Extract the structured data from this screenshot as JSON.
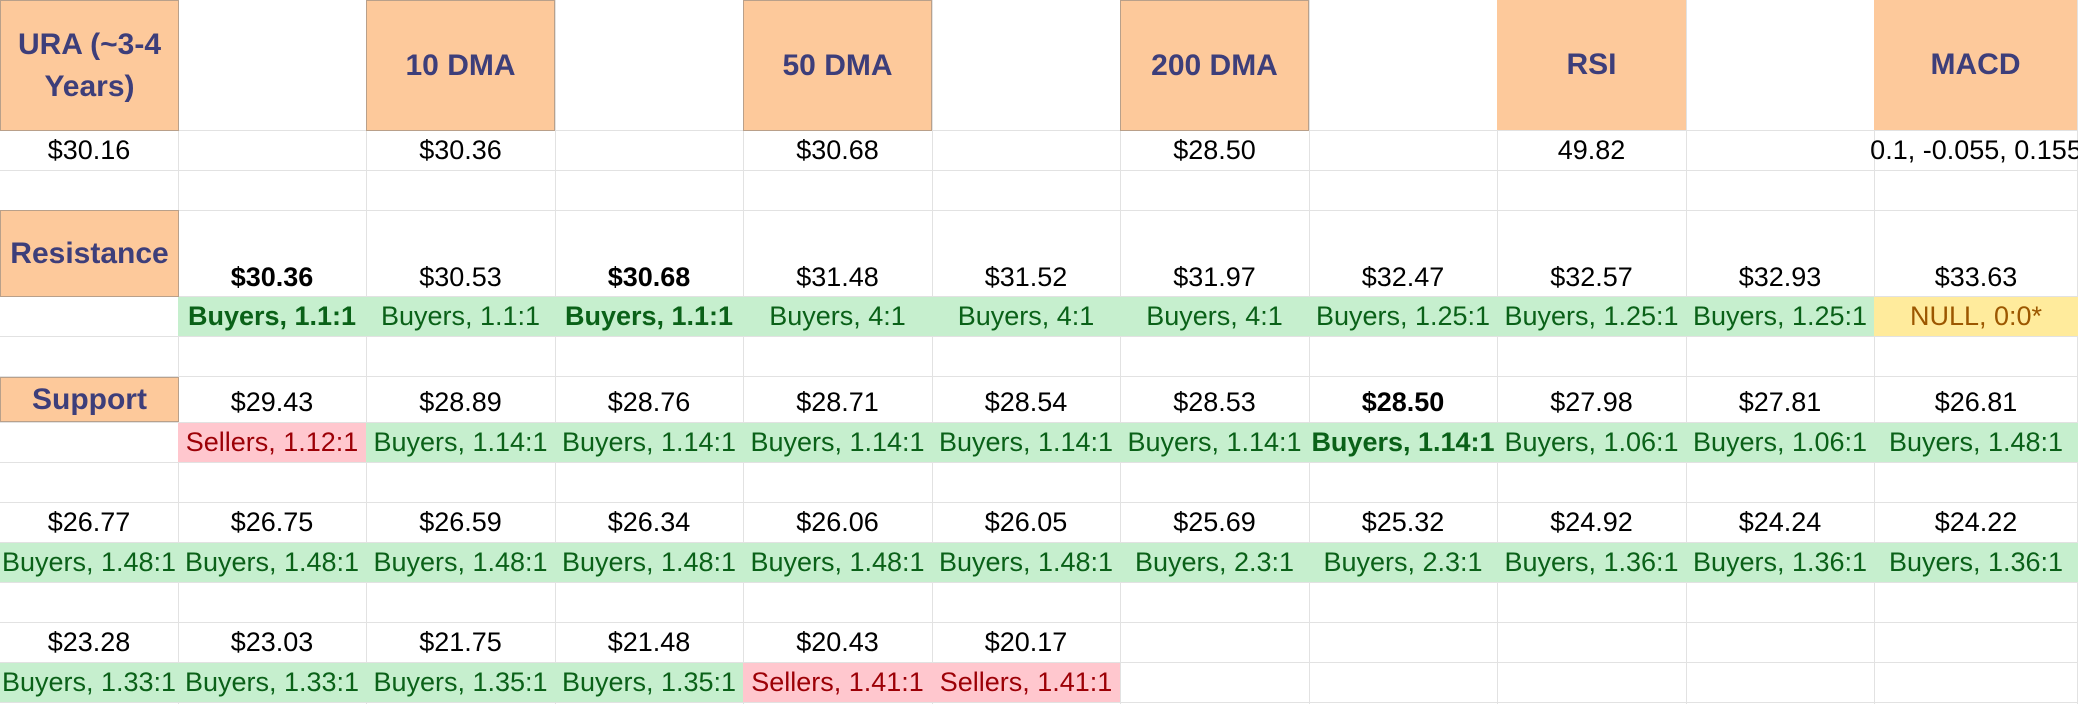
{
  "headers": {
    "ticker": "URA (~3-4 Years)",
    "dma10": "10 DMA",
    "dma50": "50 DMA",
    "dma200": "200 DMA",
    "rsi": "RSI",
    "macd": "MACD"
  },
  "values": {
    "price": "$30.16",
    "dma10": "$30.36",
    "dma50": "$30.68",
    "dma200": "$28.50",
    "rsi": "49.82",
    "macd": "0.1, -0.055, 0.155"
  },
  "resistance": {
    "label": "Resistance",
    "levels": [
      "$30.36",
      "$30.53",
      "$30.68",
      "$31.48",
      "$31.52",
      "$31.97",
      "$32.47",
      "$32.57",
      "$32.93",
      "$33.63"
    ],
    "ratios": [
      "Buyers, 1.1:1",
      "Buyers, 1.1:1",
      "Buyers, 1.1:1",
      "Buyers, 4:1",
      "Buyers, 4:1",
      "Buyers, 4:1",
      "Buyers, 1.25:1",
      "Buyers, 1.25:1",
      "Buyers, 1.25:1",
      "NULL, 0:0*"
    ]
  },
  "support": {
    "label": "Support",
    "row1_levels": [
      "$29.43",
      "$28.89",
      "$28.76",
      "$28.71",
      "$28.54",
      "$28.53",
      "$28.50",
      "$27.98",
      "$27.81",
      "$26.81"
    ],
    "row1_ratios": [
      "Sellers, 1.12:1",
      "Buyers, 1.14:1",
      "Buyers, 1.14:1",
      "Buyers, 1.14:1",
      "Buyers, 1.14:1",
      "Buyers, 1.14:1",
      "Buyers, 1.14:1",
      "Buyers, 1.06:1",
      "Buyers, 1.06:1",
      "Buyers, 1.48:1"
    ],
    "row2_levels": [
      "$26.77",
      "$26.75",
      "$26.59",
      "$26.34",
      "$26.06",
      "$26.05",
      "$25.69",
      "$25.32",
      "$24.92",
      "$24.24",
      "$24.22"
    ],
    "row2_ratios": [
      "Buyers, 1.48:1",
      "Buyers, 1.48:1",
      "Buyers, 1.48:1",
      "Buyers, 1.48:1",
      "Buyers, 1.48:1",
      "Buyers, 1.48:1",
      "Buyers, 2.3:1",
      "Buyers, 2.3:1",
      "Buyers, 1.36:1",
      "Buyers, 1.36:1",
      "Buyers, 1.36:1"
    ],
    "row3_levels": [
      "$23.28",
      "$23.03",
      "$21.75",
      "$21.48",
      "$20.43",
      "$20.17"
    ],
    "row3_ratios": [
      "Buyers, 1.33:1",
      "Buyers, 1.33:1",
      "Buyers, 1.35:1",
      "Buyers, 1.35:1",
      "Sellers, 1.41:1",
      "Sellers, 1.41:1"
    ]
  },
  "colors": {
    "header_fill": "#fdc99b",
    "header_text": "#3d3e7a",
    "buyers_fill": "#c6efce",
    "buyers_text": "#0a6118",
    "sellers_fill": "#ffc7ce",
    "sellers_text": "#9c0006",
    "null_fill": "#ffeb9c",
    "null_text": "#9c5700"
  }
}
